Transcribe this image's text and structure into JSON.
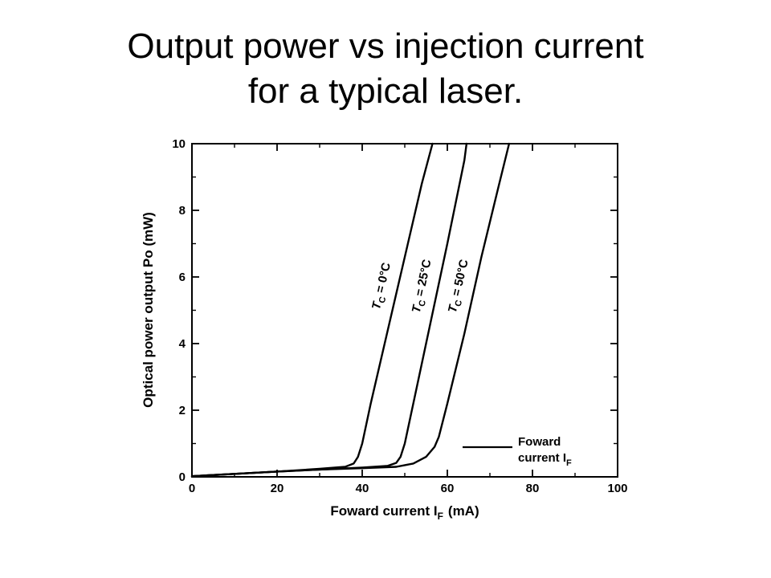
{
  "slide": {
    "title_line1": "Output power vs injection current",
    "title_line2": "for a typical laser."
  },
  "chart_data": {
    "type": "line",
    "xlabel": "Foward current I",
    "xlabel_sub": "F",
    "xlabel_unit": "(mA)",
    "ylabel": "Optical power output Po (mW)",
    "xlim": [
      0,
      100
    ],
    "ylim": [
      0,
      10
    ],
    "x_ticks": [
      0,
      20,
      40,
      60,
      80,
      100
    ],
    "y_ticks": [
      0,
      2,
      4,
      6,
      8,
      10
    ],
    "grid": false,
    "legend": {
      "placement": "bottom-right",
      "line1": "Foward",
      "line2": "current I",
      "line2_sub": "F"
    },
    "series": [
      {
        "label_var": "T",
        "label_sub": "C",
        "label_rest": " = 0°C",
        "x": [
          0,
          10,
          20,
          30,
          36,
          38,
          39,
          40,
          42,
          46,
          50,
          54,
          56.5
        ],
        "values": [
          0.02,
          0.09,
          0.16,
          0.24,
          0.3,
          0.4,
          0.6,
          1.0,
          2.2,
          4.4,
          6.6,
          8.8,
          10
        ]
      },
      {
        "label_var": "T",
        "label_sub": "C",
        "label_rest": " = 25°C",
        "x": [
          0,
          10,
          20,
          30,
          40,
          46,
          48,
          49,
          50,
          52,
          56,
          60,
          64,
          64.5
        ],
        "values": [
          0.02,
          0.09,
          0.16,
          0.22,
          0.28,
          0.33,
          0.42,
          0.6,
          1.0,
          2.2,
          4.6,
          7.0,
          9.5,
          10
        ]
      },
      {
        "label_var": "T",
        "label_sub": "C",
        "label_rest": " = 50°C",
        "x": [
          0,
          10,
          20,
          30,
          40,
          48,
          52,
          55,
          57,
          58,
          60,
          64,
          68,
          72,
          74.5
        ],
        "values": [
          0.02,
          0.09,
          0.16,
          0.22,
          0.26,
          0.3,
          0.4,
          0.6,
          0.9,
          1.2,
          2.2,
          4.3,
          6.6,
          8.7,
          10
        ]
      }
    ]
  }
}
